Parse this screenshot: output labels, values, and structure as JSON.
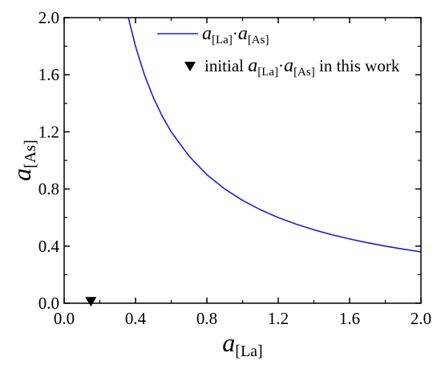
{
  "chart_data": {
    "type": "line",
    "xlabel": {
      "main": "a",
      "sub": "[La]"
    },
    "ylabel": {
      "main": "a",
      "sub": "[As]"
    },
    "xlim": [
      0.0,
      2.0
    ],
    "ylim": [
      0.0,
      2.0
    ],
    "x_ticks": [
      "0.0",
      "0.4",
      "0.8",
      "1.2",
      "1.6",
      "2.0"
    ],
    "y_ticks": [
      "0.0",
      "0.4",
      "0.8",
      "1.2",
      "1.6",
      "2.0"
    ],
    "grid": false,
    "legend_position": "top-right",
    "series": [
      {
        "kind": "curve",
        "color": "#1f1fd6",
        "legend": {
          "a1": "a",
          "s1": "[La]",
          "dot": "·",
          "a2": "a",
          "s2": "[As]"
        },
        "x": [
          0.36,
          0.4,
          0.45,
          0.5,
          0.55,
          0.6,
          0.7,
          0.8,
          0.9,
          1.0,
          1.1,
          1.2,
          1.3,
          1.4,
          1.5,
          1.6,
          1.7,
          1.8,
          1.9,
          2.0
        ],
        "y": [
          2.0,
          1.8,
          1.6,
          1.44,
          1.31,
          1.2,
          1.03,
          0.9,
          0.8,
          0.72,
          0.655,
          0.6,
          0.554,
          0.514,
          0.48,
          0.45,
          0.424,
          0.4,
          0.379,
          0.36
        ]
      },
      {
        "kind": "marker",
        "color": "#000000",
        "legend": {
          "pre": "initial ",
          "a1": "a",
          "s1": "[La]",
          "dot": "·",
          "a2": "a",
          "s2": "[As]",
          "post": " in this work"
        },
        "x": [
          0.15
        ],
        "y": [
          0.01
        ]
      }
    ]
  }
}
